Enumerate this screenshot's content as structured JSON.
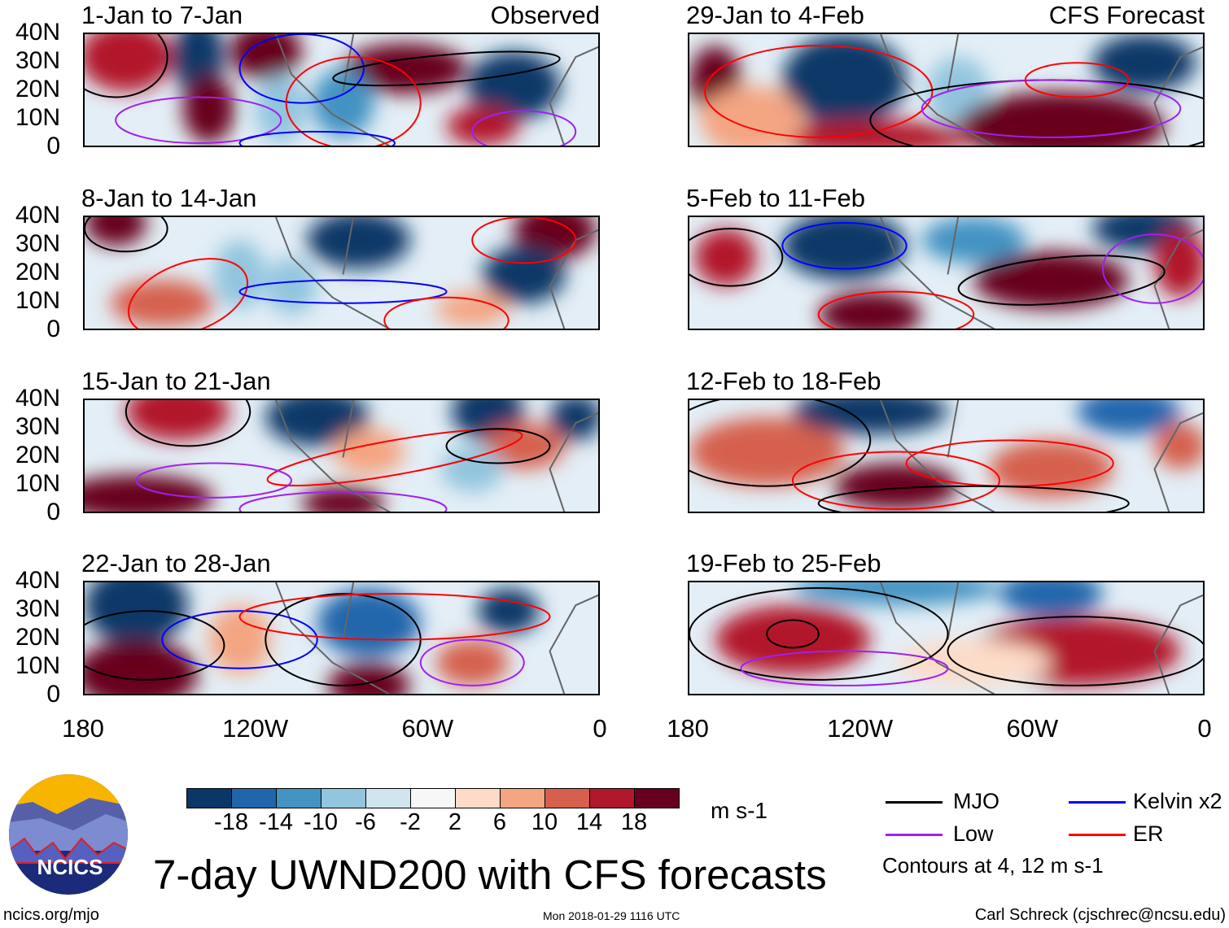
{
  "panels": [
    {
      "title": "1-Jan to 7-Jan",
      "tag": "Observed"
    },
    {
      "title": "8-Jan to 14-Jan",
      "tag": ""
    },
    {
      "title": "15-Jan to 21-Jan",
      "tag": ""
    },
    {
      "title": "22-Jan to 28-Jan",
      "tag": ""
    },
    {
      "title": "29-Jan to 4-Feb",
      "tag": "CFS Forecast"
    },
    {
      "title": "5-Feb to 11-Feb",
      "tag": ""
    },
    {
      "title": "12-Feb to 18-Feb",
      "tag": ""
    },
    {
      "title": "19-Feb to 25-Feb",
      "tag": ""
    }
  ],
  "lat_labels": [
    "40N",
    "30N",
    "20N",
    "10N",
    "0"
  ],
  "lon_labels": [
    "180",
    "120W",
    "60W",
    "0"
  ],
  "colorbar": {
    "colors": [
      "#0b3768",
      "#2166ac",
      "#4393c3",
      "#92c5de",
      "#d1e5f0",
      "#f7f7f7",
      "#fddbc7",
      "#f4a582",
      "#d6604d",
      "#b2182b",
      "#67001f"
    ],
    "labels": [
      "-18",
      "-14",
      "-10",
      "-6",
      "-2",
      "2",
      "6",
      "10",
      "14",
      "18"
    ],
    "units": "m s-1"
  },
  "legend": {
    "items": [
      {
        "label": "MJO",
        "color": "#000000"
      },
      {
        "label": "Kelvin x2",
        "color": "#0000ff"
      },
      {
        "label": "Low",
        "color": "#a020f0"
      },
      {
        "label": "ER",
        "color": "#ff0000"
      }
    ],
    "note": "Contours at 4, 12 m s-1"
  },
  "logo": "NCICS",
  "title": "7-day UWND200 with CFS forecasts",
  "footer": {
    "url": "ncics.org/mjo",
    "timestamp": "Mon 2018-01-29 1116 UTC",
    "credit": "Carl Schreck (cjschrec@ncsu.edu)"
  }
}
